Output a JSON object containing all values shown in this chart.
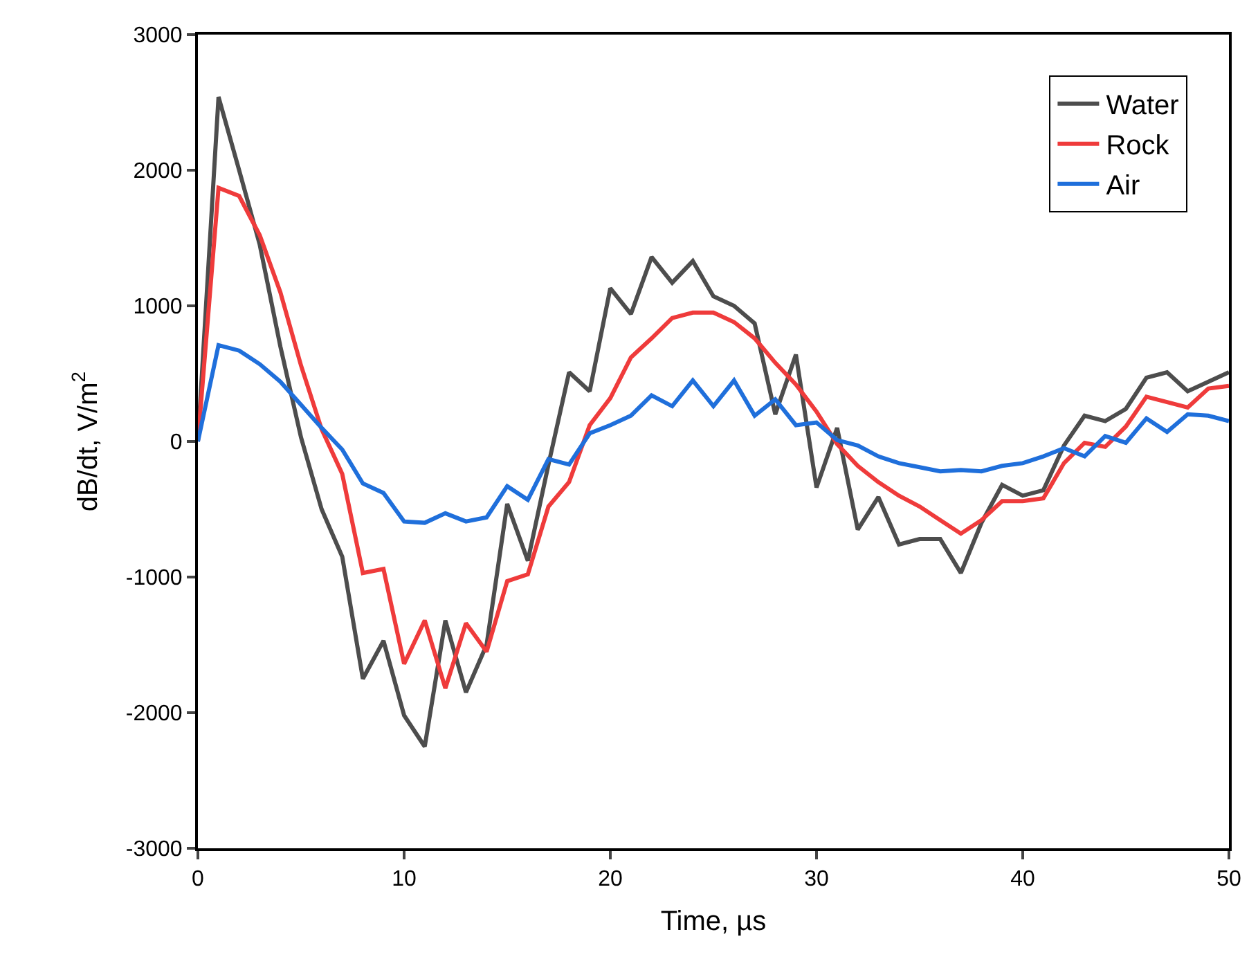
{
  "chart_data": {
    "type": "line",
    "xlabel": "Time, µs",
    "ylabel": "dB/dt, V/m$^{2}$",
    "x": [
      0,
      1,
      2,
      3,
      4,
      5,
      6,
      7,
      8,
      9,
      10,
      11,
      12,
      13,
      14,
      15,
      16,
      17,
      18,
      19,
      20,
      21,
      22,
      23,
      24,
      25,
      26,
      27,
      28,
      29,
      30,
      31,
      32,
      33,
      34,
      35,
      36,
      37,
      38,
      39,
      40,
      41,
      42,
      43,
      44,
      45,
      46,
      47,
      48,
      49,
      50
    ],
    "series": [
      {
        "name": "Water",
        "color": "#4d4d4d",
        "values": [
          0,
          2540,
          2000,
          1450,
          700,
          30,
          -500,
          -850,
          -1750,
          -1470,
          -2020,
          -2250,
          -1320,
          -1850,
          -1500,
          -460,
          -880,
          -170,
          510,
          370,
          1130,
          940,
          1360,
          1170,
          1330,
          1070,
          1000,
          870,
          200,
          640,
          -340,
          100,
          -650,
          -410,
          -760,
          -720,
          -720,
          -970,
          -600,
          -320,
          -400,
          -360,
          -30,
          190,
          150,
          240,
          470,
          510,
          370,
          440,
          510
        ]
      },
      {
        "name": "Rock",
        "color": "#ef3b3b",
        "values": [
          0,
          1870,
          1810,
          1520,
          1100,
          560,
          90,
          -240,
          -970,
          -940,
          -1640,
          -1320,
          -1820,
          -1340,
          -1550,
          -1030,
          -980,
          -480,
          -300,
          120,
          320,
          620,
          760,
          910,
          950,
          950,
          880,
          760,
          580,
          420,
          220,
          -20,
          -180,
          -300,
          -400,
          -480,
          -580,
          -680,
          -580,
          -440,
          -440,
          -420,
          -160,
          -10,
          -40,
          110,
          330,
          290,
          250,
          390,
          410
        ]
      },
      {
        "name": "Air",
        "color": "#1f6fdb",
        "values": [
          0,
          710,
          670,
          570,
          440,
          270,
          100,
          -60,
          -310,
          -380,
          -590,
          -600,
          -530,
          -590,
          -560,
          -330,
          -430,
          -130,
          -170,
          60,
          120,
          190,
          340,
          260,
          450,
          260,
          450,
          190,
          310,
          120,
          140,
          10,
          -30,
          -110,
          -160,
          -190,
          -220,
          -210,
          -220,
          -180,
          -160,
          -110,
          -50,
          -110,
          40,
          -10,
          170,
          70,
          200,
          190,
          150
        ]
      }
    ],
    "xlim": [
      0,
      50
    ],
    "xticks": [
      0,
      10,
      20,
      30,
      40,
      50
    ],
    "ylim": [
      -3000,
      3000
    ],
    "yticks": [
      -3000,
      -2000,
      -1000,
      0,
      1000,
      2000,
      3000
    ],
    "grid": false,
    "legend": "top right",
    "marker": "none",
    "line_style": "solid"
  }
}
